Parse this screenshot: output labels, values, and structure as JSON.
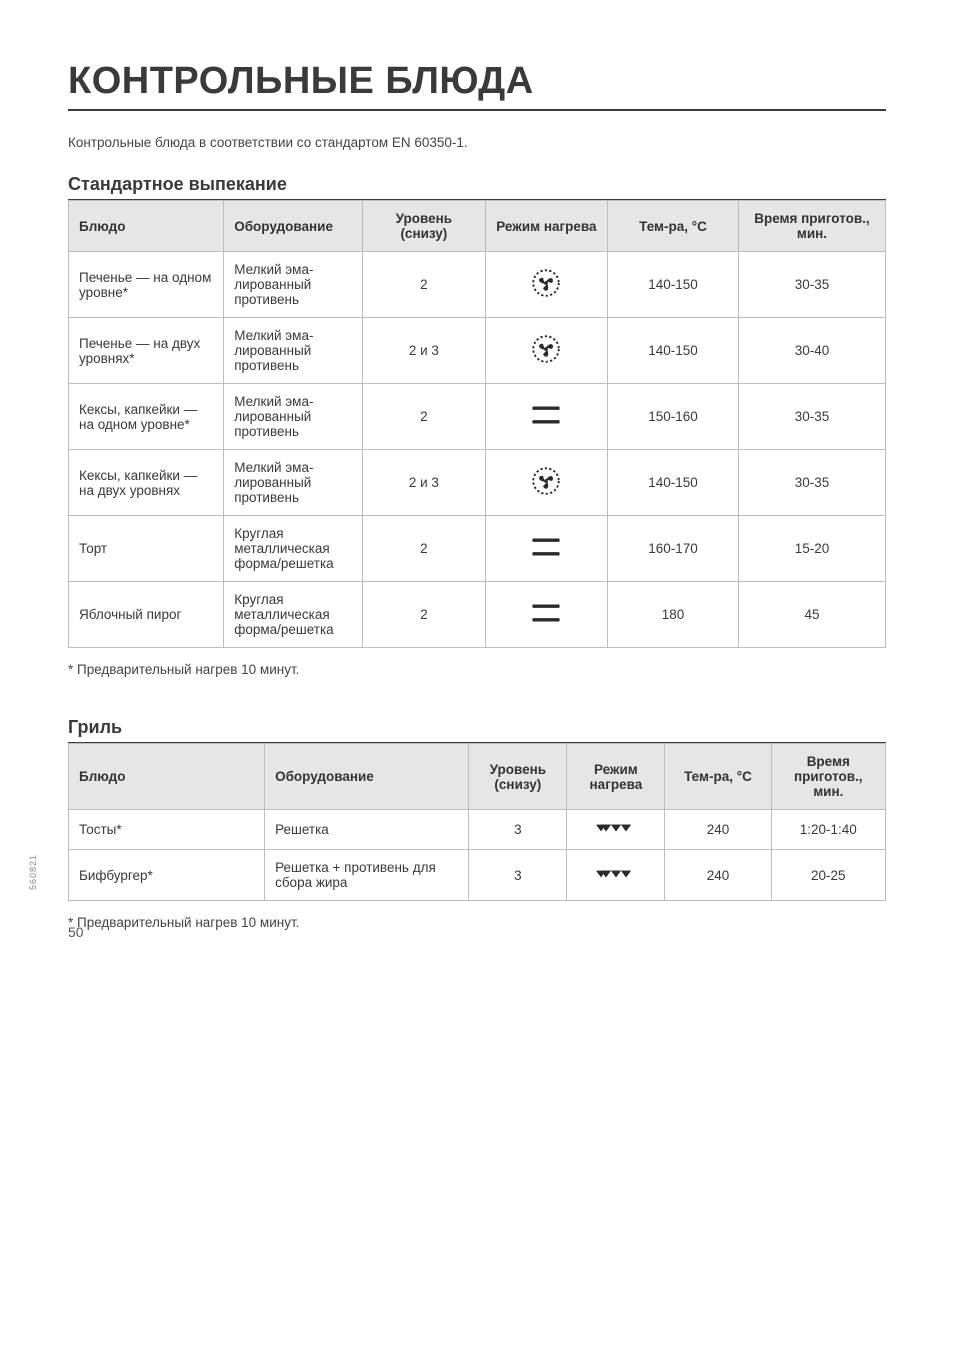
{
  "page": {
    "title": "КОНТРОЛЬНЫЕ БЛЮДА",
    "intro": "Контрольные блюда в соответствии со стандартом EN 60350-1.",
    "number": "50",
    "side_code": "560821"
  },
  "colors": {
    "text": "#3a3a3a",
    "border": "#bdbdbd",
    "header_bg": "#e6e6e6",
    "bg": "#ffffff",
    "icon": "#2a2a2a"
  },
  "section1": {
    "title": "Стандартное выпекание",
    "columns": [
      "Блюдо",
      "Оборудова­ние",
      "Уровень (снизу)",
      "Режим на­грева",
      "Тем-ра, °C",
      "Время при­готов., мин."
    ],
    "rows": [
      {
        "dish": "Печенье — на одном уровне*",
        "equip": "Мелкий эма­лированный противень",
        "level": "2",
        "mode": "fan",
        "temp": "140-150",
        "time": "30-35"
      },
      {
        "dish": "Печенье — на двух уровнях*",
        "equip": "Мелкий эма­лированный противень",
        "level": "2 и 3",
        "mode": "fan",
        "temp": "140-150",
        "time": "30-40"
      },
      {
        "dish": "Кексы, капкей­ки — на одном уровне*",
        "equip": "Мелкий эма­лированный противень",
        "level": "2",
        "mode": "conv",
        "temp": "150-160",
        "time": "30-35"
      },
      {
        "dish": "Кексы, капкейки — на двух уровнях",
        "equip": "Мелкий эма­лированный противень",
        "level": "2 и 3",
        "mode": "fan",
        "temp": "140-150",
        "time": "30-35"
      },
      {
        "dish": "Торт",
        "equip": "Круглая металличе­ская форма/решетка",
        "level": "2",
        "mode": "conv",
        "temp": "160-170",
        "time": "15-20"
      },
      {
        "dish": "Яблочный пирог",
        "equip": "Круглая металличе­ская форма/решетка",
        "level": "2",
        "mode": "conv",
        "temp": "180",
        "time": "45"
      }
    ],
    "footnote": "* Предварительный нагрев 10 минут."
  },
  "section2": {
    "title": "Гриль",
    "columns": [
      "Блюдо",
      "Оборудование",
      "Уровень (снизу)",
      "Режим нагрева",
      "Тем-ра, °C",
      "Время приготов., мин."
    ],
    "rows": [
      {
        "dish": "Тосты*",
        "equip": "Решетка",
        "level": "3",
        "mode": "grill",
        "temp": "240",
        "time": "1:20-1:40"
      },
      {
        "dish": "Бифбургер*",
        "equip": "Решетка + противень для сбора жира",
        "level": "3",
        "mode": "grill",
        "temp": "240",
        "time": "20-25"
      }
    ],
    "footnote": "* Предварительный нагрев 10 минут."
  },
  "table1_layout": {
    "col_widths_pct": [
      19,
      17,
      15,
      15,
      16,
      18
    ]
  },
  "table2_layout": {
    "col_widths_pct": [
      24,
      25,
      12,
      12,
      13,
      14
    ]
  },
  "icons": {
    "fan_color": "#2a2a2a",
    "conv_color": "#2a2a2a",
    "grill_color": "#2a2a2a"
  }
}
